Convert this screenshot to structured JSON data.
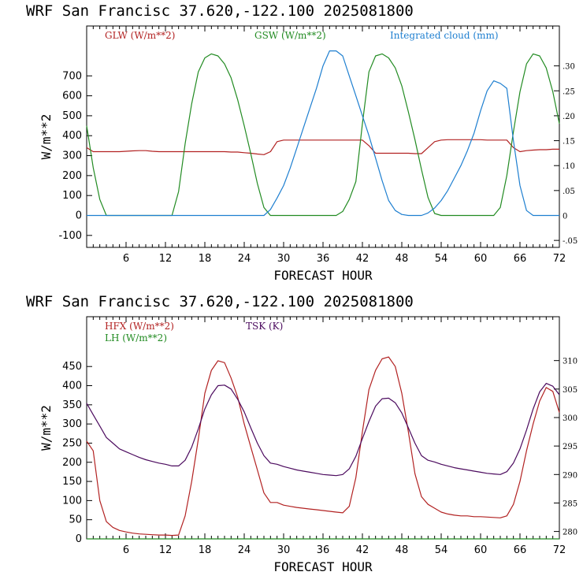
{
  "chart_data": [
    {
      "type": "line",
      "title": "WRF   San Francisc  37.620,-122.100  2025081800",
      "xlabel": "FORECAST HOUR",
      "ylabel": "W/m**2",
      "xlim": [
        0,
        72
      ],
      "ylim": [
        -160,
        950
      ],
      "y2lim": [
        -0.064,
        0.38
      ],
      "xticks": [
        "6",
        "12",
        "18",
        "24",
        "30",
        "36",
        "42",
        "48",
        "54",
        "60",
        "66",
        "72"
      ],
      "yticks": [
        "-100",
        "0",
        "100",
        "200",
        "300",
        "400",
        "500",
        "600",
        "700"
      ],
      "y2ticks": [
        "-.05",
        "0",
        ".05",
        ".10",
        ".15",
        ".20",
        ".25",
        ".30"
      ],
      "x": [
        0,
        1,
        2,
        3,
        4,
        5,
        6,
        7,
        8,
        9,
        10,
        11,
        12,
        13,
        14,
        15,
        16,
        17,
        18,
        19,
        20,
        21,
        22,
        23,
        24,
        25,
        26,
        27,
        28,
        29,
        30,
        31,
        32,
        33,
        34,
        35,
        36,
        37,
        38,
        39,
        40,
        41,
        42,
        43,
        44,
        45,
        46,
        47,
        48,
        49,
        50,
        51,
        52,
        53,
        54,
        55,
        56,
        57,
        58,
        59,
        60,
        61,
        62,
        63,
        64,
        65,
        66,
        67,
        68,
        69,
        70,
        71,
        72
      ],
      "series": [
        {
          "name": "GLW (W/m**2)",
          "color": "#b22222",
          "axis": "left",
          "values": [
            340,
            320,
            320,
            320,
            320,
            320,
            322,
            324,
            325,
            325,
            322,
            320,
            320,
            320,
            320,
            320,
            320,
            320,
            320,
            320,
            320,
            320,
            318,
            318,
            315,
            312,
            308,
            305,
            320,
            370,
            378,
            378,
            378,
            378,
            378,
            378,
            378,
            378,
            378,
            378,
            378,
            378,
            378,
            350,
            312,
            312,
            312,
            312,
            312,
            312,
            310,
            310,
            340,
            370,
            378,
            380,
            380,
            380,
            380,
            380,
            380,
            378,
            378,
            378,
            378,
            340,
            320,
            325,
            328,
            330,
            330,
            332,
            332
          ]
        },
        {
          "name": "GSW (W/m**2)",
          "color": "#228b22",
          "axis": "left",
          "values": [
            450,
            240,
            80,
            0,
            0,
            0,
            0,
            0,
            0,
            0,
            0,
            0,
            0,
            0,
            120,
            360,
            560,
            720,
            790,
            810,
            800,
            760,
            690,
            580,
            450,
            310,
            160,
            40,
            0,
            0,
            0,
            0,
            0,
            0,
            0,
            0,
            0,
            0,
            0,
            20,
            80,
            170,
            460,
            720,
            800,
            810,
            790,
            740,
            650,
            520,
            380,
            230,
            90,
            10,
            0,
            0,
            0,
            0,
            0,
            0,
            0,
            0,
            0,
            40,
            200,
            420,
            620,
            760,
            810,
            800,
            740,
            620,
            460
          ]
        },
        {
          "name": "Integrated cloud (mm)",
          "color": "#1e7fd0",
          "axis": "right",
          "values": [
            0,
            0,
            0,
            0,
            0,
            0,
            0,
            0,
            0,
            0,
            0,
            0,
            0,
            0,
            0,
            0,
            0,
            0,
            0,
            0,
            0,
            0,
            0,
            0,
            0,
            0,
            0,
            0,
            0.012,
            0.035,
            0.06,
            0.095,
            0.135,
            0.175,
            0.215,
            0.255,
            0.3,
            0.33,
            0.33,
            0.32,
            0.28,
            0.24,
            0.2,
            0.16,
            0.115,
            0.07,
            0.03,
            0.01,
            0.002,
            0,
            0,
            0,
            0.005,
            0.015,
            0.03,
            0.05,
            0.075,
            0.1,
            0.13,
            0.165,
            0.21,
            0.25,
            0.27,
            0.265,
            0.255,
            0.15,
            0.06,
            0.01,
            0,
            0,
            0,
            0,
            0
          ]
        }
      ]
    },
    {
      "type": "line",
      "title": "WRF   San Francisc  37.620,-122.100  2025081800",
      "xlabel": "FORECAST HOUR",
      "ylabel": "W/m**2",
      "xlim": [
        0,
        72
      ],
      "ylim": [
        0,
        580
      ],
      "y2lim": [
        278.7,
        317.7
      ],
      "xticks": [
        "6",
        "12",
        "18",
        "24",
        "30",
        "36",
        "42",
        "48",
        "54",
        "60",
        "66",
        "72"
      ],
      "yticks": [
        "0",
        "50",
        "100",
        "150",
        "200",
        "250",
        "300",
        "350",
        "400",
        "450"
      ],
      "y2ticks": [
        "280",
        "285",
        "290",
        "295",
        "300",
        "305",
        "310"
      ],
      "x": [
        0,
        1,
        2,
        3,
        4,
        5,
        6,
        7,
        8,
        9,
        10,
        11,
        12,
        13,
        14,
        15,
        16,
        17,
        18,
        19,
        20,
        21,
        22,
        23,
        24,
        25,
        26,
        27,
        28,
        29,
        30,
        31,
        32,
        33,
        34,
        35,
        36,
        37,
        38,
        39,
        40,
        41,
        42,
        43,
        44,
        45,
        46,
        47,
        48,
        49,
        50,
        51,
        52,
        53,
        54,
        55,
        56,
        57,
        58,
        59,
        60,
        61,
        62,
        63,
        64,
        65,
        66,
        67,
        68,
        69,
        70,
        71,
        72
      ],
      "series": [
        {
          "name": "HFX (W/m**2)",
          "color": "#b22222",
          "axis": "left",
          "values": [
            255,
            230,
            100,
            45,
            30,
            22,
            18,
            15,
            13,
            12,
            11,
            10,
            10,
            9,
            10,
            60,
            150,
            260,
            380,
            440,
            465,
            460,
            420,
            370,
            300,
            240,
            180,
            120,
            95,
            95,
            88,
            85,
            82,
            80,
            78,
            76,
            74,
            72,
            70,
            68,
            85,
            160,
            280,
            390,
            440,
            470,
            475,
            450,
            380,
            280,
            170,
            110,
            90,
            80,
            70,
            65,
            62,
            60,
            60,
            58,
            58,
            57,
            56,
            55,
            60,
            90,
            150,
            230,
            300,
            360,
            395,
            385,
            330
          ]
        },
        {
          "name": "LH  (W/m**2)",
          "color": "#228b22",
          "axis": "left",
          "values": [
            0,
            0,
            0,
            0,
            0,
            0,
            0,
            0,
            0,
            0,
            0,
            0,
            0,
            0,
            0,
            0,
            0,
            0,
            0,
            0,
            0,
            0,
            0,
            0,
            0,
            0,
            0,
            0,
            0,
            0,
            0,
            0,
            0,
            0,
            0,
            0,
            0,
            0,
            0,
            0,
            0,
            0,
            0,
            0,
            0,
            0,
            0,
            0,
            0,
            0,
            0,
            0,
            0,
            0,
            0,
            0,
            0,
            0,
            0,
            0,
            0,
            0,
            0,
            0,
            0,
            0,
            0,
            0,
            0,
            0,
            0,
            0,
            0
          ]
        },
        {
          "name": "TSK (K)",
          "color": "#4b0a5e",
          "axis": "right",
          "values": [
            302.5,
            300.5,
            298.5,
            296.5,
            295.5,
            294.5,
            294.0,
            293.5,
            293.0,
            292.6,
            292.3,
            292.0,
            291.8,
            291.5,
            291.5,
            292.5,
            294.8,
            298.0,
            301.5,
            304.0,
            305.6,
            305.7,
            305.0,
            303.2,
            301.0,
            298.2,
            295.5,
            293.3,
            292.0,
            291.8,
            291.4,
            291.1,
            290.8,
            290.6,
            290.4,
            290.2,
            290.0,
            289.9,
            289.8,
            290.0,
            291.0,
            293.2,
            296.3,
            299.3,
            302.0,
            303.3,
            303.4,
            302.6,
            300.8,
            298.2,
            295.5,
            293.3,
            292.5,
            292.2,
            291.8,
            291.5,
            291.2,
            291.0,
            290.8,
            290.6,
            290.4,
            290.2,
            290.1,
            290.0,
            290.5,
            292.0,
            294.5,
            297.8,
            301.5,
            304.5,
            306.0,
            305.5,
            304.0
          ]
        }
      ]
    }
  ]
}
